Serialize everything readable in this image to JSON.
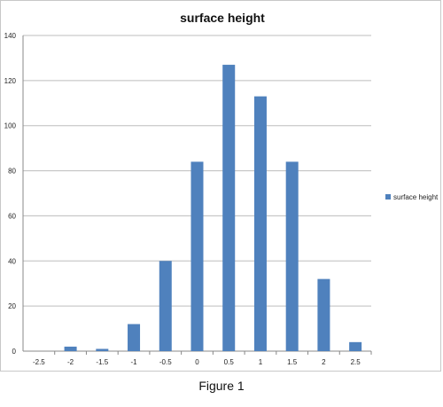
{
  "chart_data": {
    "type": "bar",
    "title": "surface height",
    "categories": [
      "-2.5",
      "-2",
      "-1.5",
      "-1",
      "-0.5",
      "0",
      "0.5",
      "1",
      "1.5",
      "2",
      "2.5"
    ],
    "series": [
      {
        "name": "surface height",
        "values": [
          0,
          2,
          1,
          12,
          40,
          84,
          127,
          113,
          84,
          32,
          4
        ],
        "color": "#4f81bd"
      }
    ],
    "ylim": [
      0,
      140
    ],
    "yticks": [
      0,
      20,
      40,
      60,
      80,
      100,
      120,
      140
    ],
    "grid": true,
    "legend": "right"
  },
  "caption": "Figure 1"
}
